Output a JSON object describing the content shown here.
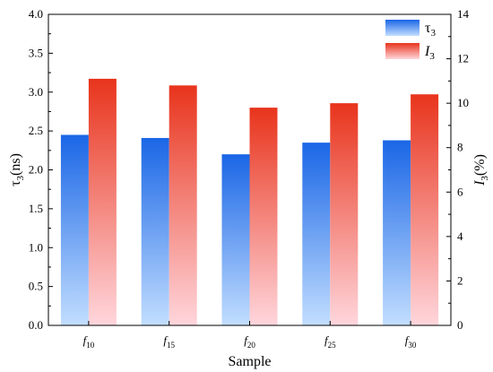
{
  "chart_data": {
    "type": "bar",
    "xlabel": "Sample",
    "ylabel_left": {
      "base": "τ",
      "sub": "3",
      "tail": "(ns)"
    },
    "ylabel_right": {
      "base": "I",
      "sub": "3",
      "tail": "(%)"
    },
    "categories": [
      {
        "base": "f",
        "sub": "10"
      },
      {
        "base": "f",
        "sub": "15"
      },
      {
        "base": "f",
        "sub": "20"
      },
      {
        "base": "f",
        "sub": "25"
      },
      {
        "base": "f",
        "sub": "30"
      }
    ],
    "series": [
      {
        "name": "τ3",
        "legend": {
          "base": "τ",
          "sub": "3"
        },
        "axis": "left",
        "values": [
          2.45,
          2.41,
          2.2,
          2.35,
          2.38
        ],
        "color_top": "#1a66e6",
        "color_bottom": "#c2deff"
      },
      {
        "name": "I3",
        "legend": {
          "base": "I",
          "sub": "3"
        },
        "axis": "right",
        "values": [
          11.1,
          10.8,
          9.8,
          10.0,
          10.4
        ],
        "color_top": "#e8341c",
        "color_bottom": "#ffd6dc"
      }
    ],
    "ylim_left": [
      0,
      4.0
    ],
    "yticks_left": [
      "0.0",
      "0.5",
      "1.0",
      "1.5",
      "2.0",
      "2.5",
      "3.0",
      "3.5",
      "4.0"
    ],
    "ylim_right": [
      0,
      14
    ],
    "yticks_right": [
      "0",
      "2",
      "4",
      "6",
      "8",
      "10",
      "12",
      "14"
    ],
    "legend_position": "top-right",
    "grid": false
  }
}
